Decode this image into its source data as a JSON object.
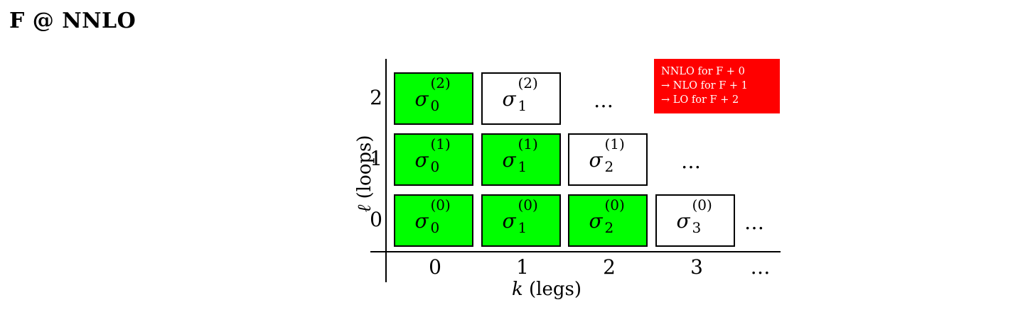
{
  "title": "F @ NNLO",
  "colors": {
    "filled": "#00ff00",
    "empty": "#ffffff",
    "legend_bg": "#ff0000"
  },
  "axes": {
    "x_title_var": "k",
    "x_title_text": "(legs)",
    "y_title_var": "ℓ",
    "y_title_text": "(loops)",
    "x_ticks": [
      "0",
      "1",
      "2",
      "3",
      "…"
    ],
    "y_ticks": [
      "2",
      "1",
      "0"
    ]
  },
  "cells": {
    "r2c0": {
      "base": "σ",
      "sup": "(2)",
      "sub": "0",
      "state": "filled"
    },
    "r2c1": {
      "base": "σ",
      "sup": "(2)",
      "sub": "1",
      "state": "empty"
    },
    "r1c0": {
      "base": "σ",
      "sup": "(1)",
      "sub": "0",
      "state": "filled"
    },
    "r1c1": {
      "base": "σ",
      "sup": "(1)",
      "sub": "1",
      "state": "filled"
    },
    "r1c2": {
      "base": "σ",
      "sup": "(1)",
      "sub": "2",
      "state": "empty"
    },
    "r0c0": {
      "base": "σ",
      "sup": "(0)",
      "sub": "0",
      "state": "filled"
    },
    "r0c1": {
      "base": "σ",
      "sup": "(0)",
      "sub": "1",
      "state": "filled"
    },
    "r0c2": {
      "base": "σ",
      "sup": "(0)",
      "sub": "2",
      "state": "filled"
    },
    "r0c3": {
      "base": "σ",
      "sup": "(0)",
      "sub": "3",
      "state": "empty"
    }
  },
  "ellipsis": "…",
  "legend": {
    "line1": "NNLO for F + 0",
    "line2": "→ NLO for F + 1",
    "line3": "→ LO for F + 2"
  }
}
